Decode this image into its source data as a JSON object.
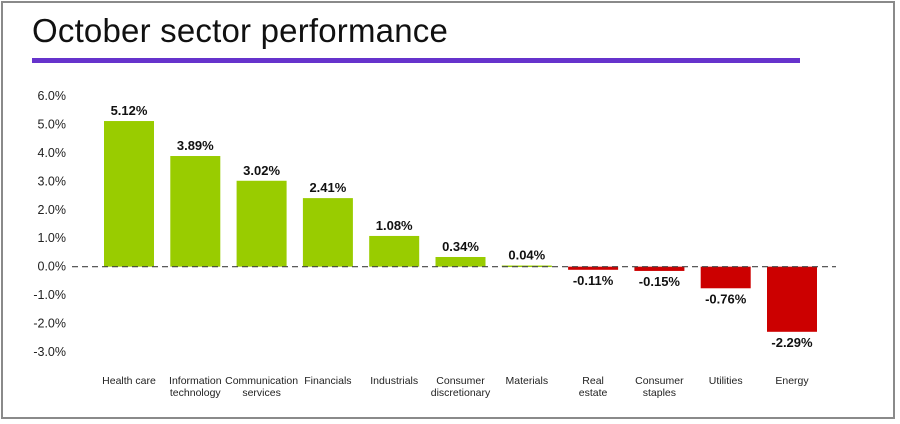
{
  "colors": {
    "accent": "#6633cc",
    "positive": "#99cc00",
    "negative": "#cc0000",
    "baseline": "#444444"
  },
  "chart_data": {
    "type": "bar",
    "title": "October sector performance",
    "xlabel": "",
    "ylabel": "",
    "ylim": [
      -3.0,
      6.0
    ],
    "yticks": [
      "6.0%",
      "5.0%",
      "4.0%",
      "3.0%",
      "2.0%",
      "1.0%",
      "0.0%",
      "-1.0%",
      "-2.0%",
      "-3.0%"
    ],
    "categories": [
      [
        "Health care"
      ],
      [
        "Information",
        "technology"
      ],
      [
        "Communication",
        "services"
      ],
      [
        "Financials"
      ],
      [
        "Industrials"
      ],
      [
        "Consumer",
        "discretionary"
      ],
      [
        "Materials"
      ],
      [
        "Real",
        "estate"
      ],
      [
        "Consumer",
        "staples"
      ],
      [
        "Utilities"
      ],
      [
        "Energy"
      ]
    ],
    "values": [
      5.12,
      3.89,
      3.02,
      2.41,
      1.08,
      0.34,
      0.04,
      -0.11,
      -0.15,
      -0.76,
      -2.29
    ],
    "value_labels": [
      "5.12%",
      "3.89%",
      "3.02%",
      "2.41%",
      "1.08%",
      "0.34%",
      "0.04%",
      "-0.11%",
      "-0.15%",
      "-0.76%",
      "-2.29%"
    ],
    "grid": false,
    "legend": "none"
  }
}
